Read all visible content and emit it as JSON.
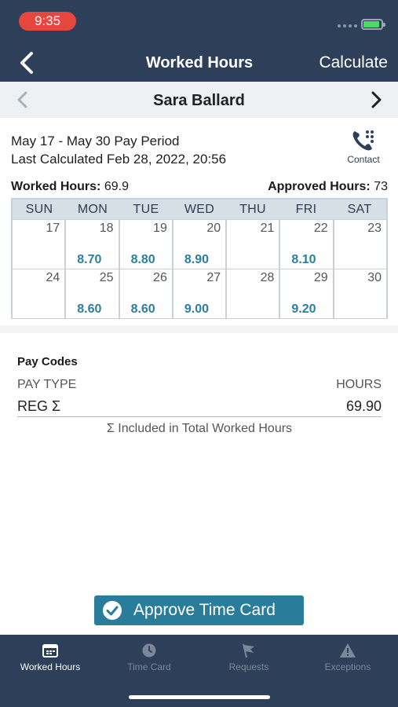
{
  "status_bar": {
    "time": "9:35"
  },
  "nav": {
    "title": "Worked Hours",
    "action": "Calculate"
  },
  "employee": {
    "name": "Sara Ballard"
  },
  "period": {
    "range": "May 17 - May 30 Pay Period",
    "last_calculated": "Last Calculated Feb 28, 2022, 20:56"
  },
  "contact": {
    "label": "Contact"
  },
  "totals": {
    "worked_label": "Worked Hours:",
    "worked_value": "69.9",
    "approved_label": "Approved Hours:",
    "approved_value": "73"
  },
  "calendar": {
    "days": [
      "SUN",
      "MON",
      "TUE",
      "WED",
      "THU",
      "FRI",
      "SAT"
    ],
    "weeks": [
      [
        {
          "day": "17",
          "hours": ""
        },
        {
          "day": "18",
          "hours": "8.70"
        },
        {
          "day": "19",
          "hours": "8.80"
        },
        {
          "day": "20",
          "hours": "8.90"
        },
        {
          "day": "21",
          "hours": ""
        },
        {
          "day": "22",
          "hours": "8.10"
        },
        {
          "day": "23",
          "hours": ""
        }
      ],
      [
        {
          "day": "24",
          "hours": ""
        },
        {
          "day": "25",
          "hours": "8.60"
        },
        {
          "day": "26",
          "hours": "8.60"
        },
        {
          "day": "27",
          "hours": "9.00"
        },
        {
          "day": "28",
          "hours": ""
        },
        {
          "day": "29",
          "hours": "9.20"
        },
        {
          "day": "30",
          "hours": ""
        }
      ]
    ]
  },
  "pay_codes": {
    "title": "Pay Codes",
    "col_type": "PAY TYPE",
    "col_hours": "HOURS",
    "rows": [
      {
        "type": "REG Σ",
        "hours": "69.90"
      }
    ],
    "note": "Σ Included in Total Worked Hours"
  },
  "approve": {
    "label": "Approve Time Card"
  },
  "tabs": [
    {
      "label": "Worked Hours",
      "icon": "calendar-icon",
      "active": true
    },
    {
      "label": "Time Card",
      "icon": "clock-icon",
      "active": false
    },
    {
      "label": "Requests",
      "icon": "flag-icon",
      "active": false
    },
    {
      "label": "Exceptions",
      "icon": "warning-icon",
      "active": false
    }
  ],
  "colors": {
    "header_bg": "#2e4059",
    "accent": "#2a7d9a",
    "hours_text": "#2c7f9c",
    "time_pill": "#e5463d"
  }
}
